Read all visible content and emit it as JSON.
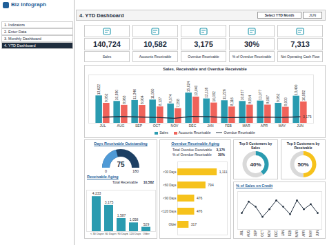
{
  "header": {
    "brand": "Biz Infograph",
    "title": "4. YTD Dashboard",
    "selector_label": "Select YTD Month",
    "selected_month": "JUN"
  },
  "sidebar": {
    "items": [
      "1. Indicators",
      "2. Enter Data",
      "3. Monthly Dashboard",
      "4. YTD Dashboard"
    ],
    "active": "4. YTD Dashboard"
  },
  "kpis": [
    {
      "value": "140,724",
      "label": "Sales"
    },
    {
      "value": "10,582",
      "label": "Accounts Receivable"
    },
    {
      "value": "3,175",
      "label": "Overdue Receivable"
    },
    {
      "value": "30%",
      "label": "% of Overdue Receivable"
    },
    {
      "value": "7,313",
      "label": "Net Operating Cash Flow"
    }
  ],
  "chart_data": [
    {
      "type": "bar",
      "title": "Sales, Receivable and Overdue Receivable",
      "categories": [
        "JUL",
        "AUG",
        "SEP",
        "OCT",
        "NOV",
        "DEC",
        "JAN",
        "FEB",
        "MAR",
        "APR",
        "MAY",
        "JUN"
      ],
      "series": [
        {
          "name": "Sales",
          "type": "bar",
          "color": "#2a9bb0",
          "values": [
            13622,
            10880,
            11346,
            11560,
            9574,
            15024,
            12116,
            11226,
            10857,
            11077,
            9952,
            13490
          ],
          "value_labels": [
            "13,622",
            "10,880",
            "11,346",
            "11,560",
            "9,574",
            "15,024",
            "12,116",
            "11,226",
            "10,857",
            "11,077",
            "9,952",
            "13,490"
          ]
        },
        {
          "name": "Accounts Receivable",
          "type": "bar",
          "color": "#f0635a",
          "values": [
            9952,
            8963,
            8904,
            8137,
            7258,
            13040,
            10082,
            8116,
            9054,
            9067,
            8000,
            10582
          ],
          "value_labels": [
            "9,952",
            "8,963",
            "8,904",
            "8,137",
            "7,258",
            "13,040",
            "10,082",
            "8,116",
            "9,054",
            "9,067",
            "8,000",
            "10,582"
          ]
        },
        {
          "name": "Overdue Receivable",
          "type": "line",
          "color": "#1f2d3d",
          "values": [
            2990,
            3260,
            3105,
            2870,
            2450,
            3380,
            3150,
            2790,
            2930,
            3050,
            2880,
            3175
          ],
          "value_labels": [
            null,
            null,
            null,
            null,
            null,
            null,
            null,
            null,
            null,
            null,
            null,
            "3,175"
          ]
        }
      ],
      "ylim": [
        0,
        24000
      ],
      "data_labels": true,
      "legend": "bottom",
      "tick_labels": "x"
    },
    {
      "type": "gauge",
      "title": "Days Receivable Outstanding",
      "value": 75,
      "min": 0,
      "max": 180,
      "colors": [
        "#4f9ad6",
        "#1c3f63"
      ]
    },
    {
      "type": "bar",
      "title": "Receivable Aging",
      "annotations": [
        {
          "text": "Total Receivable",
          "value": "10,582"
        }
      ],
      "categories": [
        "< 30 Days",
        "< 60 Days",
        "< 90 Days",
        "< 120 Days",
        "Older"
      ],
      "values": [
        4233,
        3175,
        1587,
        1058,
        529
      ],
      "value_labels": [
        "4,233",
        "3,175",
        "1,587",
        "1,058",
        "529"
      ],
      "color": "#2a9bb0",
      "ylim": [
        0,
        5000
      ],
      "data_labels": true,
      "tick_labels": "x"
    },
    {
      "type": "bar",
      "orientation": "horizontal",
      "title": "Overdue Receivable Aging",
      "annotations": [
        {
          "text": "Total Overdue Receivable",
          "value": "3,175"
        },
        {
          "text": "% of Overdue Receivable",
          "value": "30%"
        }
      ],
      "categories": [
        "<30 Days",
        "<60 Days",
        "<90 Days",
        "<120 Days",
        "Older"
      ],
      "values": [
        1111,
        794,
        476,
        476,
        317
      ],
      "value_labels": [
        "1,111",
        "794",
        "476",
        "476",
        "317"
      ],
      "color": "#f6c21c",
      "xlim": [
        0,
        1400
      ],
      "data_labels": true,
      "tick_labels": "y"
    },
    {
      "type": "donut",
      "title": "Top 5 Customers by Sales",
      "values": [
        40,
        60
      ],
      "value_labels": [
        "40%",
        null
      ],
      "colors": [
        "#2a9bb0",
        "#d9d9d9"
      ]
    },
    {
      "type": "donut",
      "title": "Top 5 Customers by Receivable",
      "values": [
        50,
        50
      ],
      "value_labels": [
        "50%",
        null
      ],
      "colors": [
        "#f6c21c",
        "#d9d9d9"
      ]
    },
    {
      "type": "line",
      "title": "% of Sales on Credit",
      "categories": [
        "JUL",
        "AUG",
        "SEP",
        "OCT",
        "NOV",
        "DEC",
        "JAN",
        "FEB",
        "MAR",
        "APR",
        "MAY",
        "JUN"
      ],
      "values": [
        73,
        82,
        78,
        70,
        76,
        83,
        78,
        72,
        83,
        76,
        80,
        73
      ],
      "color": "#1f2d3d",
      "marker": "circle",
      "ylim": [
        60,
        90
      ],
      "tick_labels": "x"
    }
  ]
}
